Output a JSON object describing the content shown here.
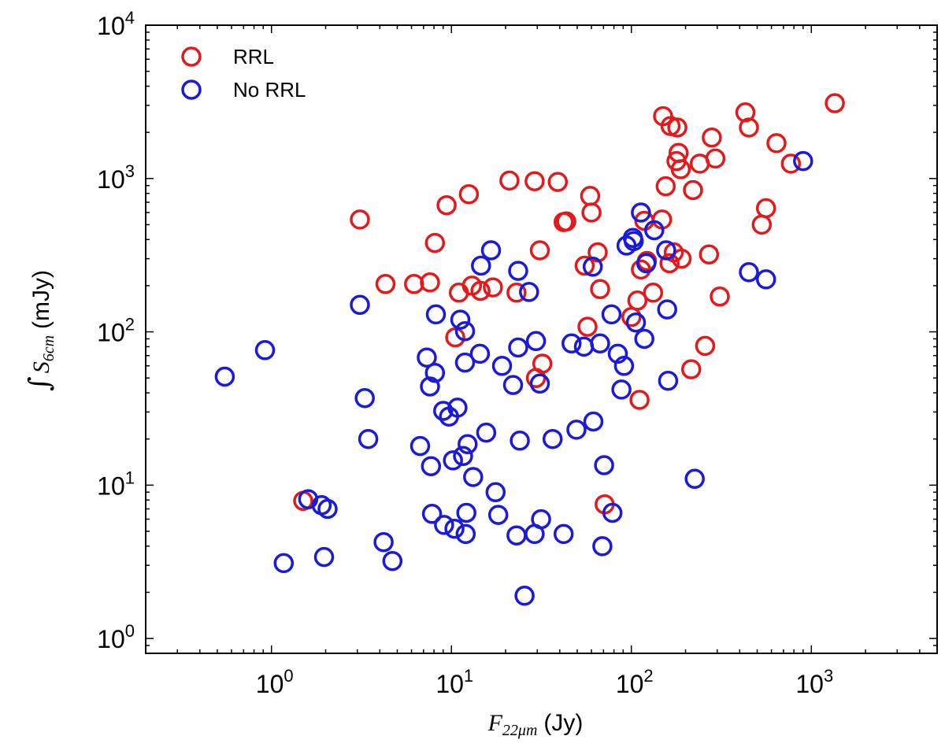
{
  "chart_data": {
    "type": "scatter",
    "xscale": "log",
    "yscale": "log",
    "xlim": [
      0.2,
      5000
    ],
    "ylim": [
      0.8,
      10000
    ],
    "x_ticks": [
      {
        "base": "10",
        "exp": "0"
      },
      {
        "base": "10",
        "exp": "1"
      },
      {
        "base": "10",
        "exp": "2"
      },
      {
        "base": "10",
        "exp": "3"
      }
    ],
    "y_ticks": [
      {
        "base": "10",
        "exp": "0"
      },
      {
        "base": "10",
        "exp": "1"
      },
      {
        "base": "10",
        "exp": "2"
      },
      {
        "base": "10",
        "exp": "3"
      },
      {
        "base": "10",
        "exp": "4"
      }
    ],
    "xlabel": {
      "symbol": "F",
      "subscript": "22μm",
      "unit": "(Jy)"
    },
    "ylabel": {
      "integral": "∫",
      "symbol": "S",
      "subscript": "6cm",
      "unit": "(mJy)"
    },
    "legend_position": "top-left",
    "series": [
      {
        "name": "RRL",
        "color": "#e31a1c",
        "marker": "open-circle",
        "points": [
          [
            3.1,
            540
          ],
          [
            4.3,
            205
          ],
          [
            6.2,
            205
          ],
          [
            7.6,
            210
          ],
          [
            8.1,
            380
          ],
          [
            9.4,
            670
          ],
          [
            10.5,
            92
          ],
          [
            11,
            180
          ],
          [
            12.5,
            790
          ],
          [
            13,
            200
          ],
          [
            14.5,
            185
          ],
          [
            17,
            195
          ],
          [
            21,
            970
          ],
          [
            23,
            180
          ],
          [
            29,
            960
          ],
          [
            31,
            340
          ],
          [
            32,
            62
          ],
          [
            29.5,
            50
          ],
          [
            39,
            950
          ],
          [
            42,
            520
          ],
          [
            43.5,
            525
          ],
          [
            55,
            270
          ],
          [
            57,
            108
          ],
          [
            59,
            770
          ],
          [
            60,
            600
          ],
          [
            65,
            330
          ],
          [
            67,
            190
          ],
          [
            71,
            7.5
          ],
          [
            100,
            125
          ],
          [
            108,
            160
          ],
          [
            111,
            36
          ],
          [
            113,
            255
          ],
          [
            118,
            530
          ],
          [
            122,
            290
          ],
          [
            132,
            180
          ],
          [
            148,
            540
          ],
          [
            150,
            2550
          ],
          [
            155,
            890
          ],
          [
            163,
            280
          ],
          [
            165,
            2200
          ],
          [
            172,
            330
          ],
          [
            178,
            1300
          ],
          [
            180,
            2150
          ],
          [
            183,
            1470
          ],
          [
            188,
            1150
          ],
          [
            190,
            300
          ],
          [
            215,
            57
          ],
          [
            220,
            840
          ],
          [
            240,
            1250
          ],
          [
            257,
            81
          ],
          [
            270,
            320
          ],
          [
            280,
            1850
          ],
          [
            293,
            1350
          ],
          [
            310,
            170
          ],
          [
            430,
            2700
          ],
          [
            450,
            2150
          ],
          [
            530,
            500
          ],
          [
            560,
            640
          ],
          [
            640,
            1700
          ],
          [
            770,
            1250
          ],
          [
            1350,
            3100
          ],
          [
            1.5,
            7.9
          ]
        ]
      },
      {
        "name": "No RRL",
        "color": "#1a1adb",
        "marker": "open-circle",
        "points": [
          [
            0.55,
            51
          ],
          [
            0.92,
            76
          ],
          [
            1.17,
            3.1
          ],
          [
            1.6,
            8.1
          ],
          [
            1.9,
            7.4
          ],
          [
            1.96,
            3.4
          ],
          [
            2.05,
            7.0
          ],
          [
            3.1,
            150
          ],
          [
            3.3,
            37
          ],
          [
            3.45,
            20
          ],
          [
            4.2,
            4.25
          ],
          [
            4.7,
            3.2
          ],
          [
            6.7,
            18
          ],
          [
            7.3,
            68
          ],
          [
            7.6,
            44
          ],
          [
            7.7,
            13.3
          ],
          [
            7.8,
            6.5
          ],
          [
            8.1,
            54
          ],
          [
            8.2,
            130
          ],
          [
            9.0,
            30.5
          ],
          [
            9.1,
            5.5
          ],
          [
            9.7,
            28
          ],
          [
            10.2,
            14.5
          ],
          [
            10.4,
            5.2
          ],
          [
            10.8,
            32
          ],
          [
            11.2,
            120
          ],
          [
            11.6,
            15.5
          ],
          [
            11.9,
            63
          ],
          [
            11.9,
            101
          ],
          [
            12.0,
            4.8
          ],
          [
            12.1,
            6.6
          ],
          [
            12.3,
            18.5
          ],
          [
            13.2,
            11.3
          ],
          [
            14.4,
            72
          ],
          [
            14.6,
            270
          ],
          [
            15.6,
            22
          ],
          [
            16.6,
            340
          ],
          [
            17.6,
            9.0
          ],
          [
            18.2,
            6.4
          ],
          [
            19.1,
            60
          ],
          [
            22,
            45
          ],
          [
            23,
            4.7
          ],
          [
            23.5,
            250
          ],
          [
            23.5,
            79
          ],
          [
            24,
            19.5
          ],
          [
            25.5,
            1.9
          ],
          [
            27,
            182
          ],
          [
            29,
            4.8
          ],
          [
            29.5,
            87
          ],
          [
            31,
            46
          ],
          [
            31.5,
            6.0
          ],
          [
            36.5,
            20
          ],
          [
            42,
            4.8
          ],
          [
            46.5,
            84
          ],
          [
            49.5,
            23
          ],
          [
            54.5,
            80
          ],
          [
            61,
            266
          ],
          [
            61.5,
            26
          ],
          [
            67,
            84
          ],
          [
            69,
            4.0
          ],
          [
            70.5,
            13.5
          ],
          [
            77.5,
            130
          ],
          [
            78.5,
            6.6
          ],
          [
            84,
            72
          ],
          [
            88,
            42
          ],
          [
            91,
            60
          ],
          [
            94,
            365
          ],
          [
            102,
            410
          ],
          [
            103,
            390
          ],
          [
            106,
            115
          ],
          [
            113,
            600
          ],
          [
            118,
            90
          ],
          [
            121,
            280
          ],
          [
            134,
            460
          ],
          [
            156,
            340
          ],
          [
            158,
            140
          ],
          [
            160,
            48
          ],
          [
            225,
            11
          ],
          [
            450,
            245
          ],
          [
            560,
            220
          ],
          [
            900,
            1300
          ]
        ]
      }
    ]
  }
}
